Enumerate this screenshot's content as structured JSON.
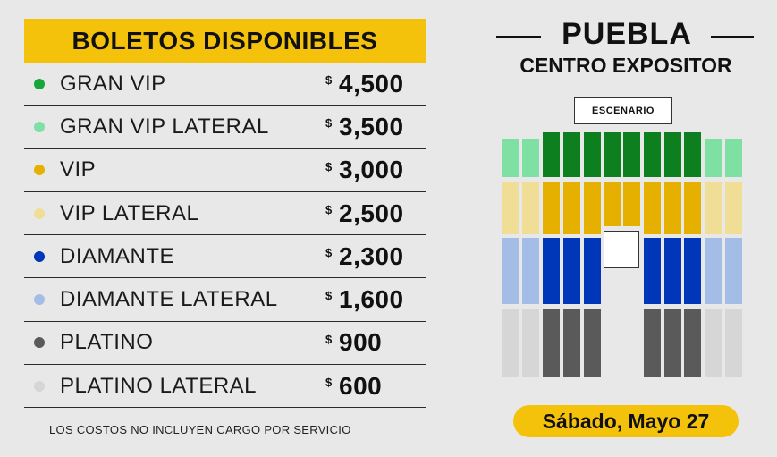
{
  "title": "BOLETOS DISPONIBLES",
  "currency_symbol": "$",
  "tickets": [
    {
      "name": "GRAN VIP",
      "price": "4,500",
      "color": "#14a83b"
    },
    {
      "name": "GRAN VIP LATERAL",
      "price": "3,500",
      "color": "#7fe0a4"
    },
    {
      "name": "VIP",
      "price": "3,000",
      "color": "#e6b000"
    },
    {
      "name": "VIP LATERAL",
      "price": "2,500",
      "color": "#f0dd96"
    },
    {
      "name": "DIAMANTE",
      "price": "2,300",
      "color": "#0036b8"
    },
    {
      "name": "DIAMANTE LATERAL",
      "price": "1,600",
      "color": "#a3bde6"
    },
    {
      "name": "PLATINO",
      "price": "900",
      "color": "#5a5a5a"
    },
    {
      "name": "PLATINO LATERAL",
      "price": "600",
      "color": "#d6d6d6"
    }
  ],
  "footnote": "LOS COSTOS NO INCLUYEN CARGO POR SERVICIO",
  "city": "PUEBLA",
  "venue": "CENTRO EXPOSITOR",
  "stage_label": "ESCENARIO",
  "date": "Sábado, Mayo 27",
  "colors": {
    "accent": "#f5c20b",
    "background": "#e8e8e8",
    "gran_vip": "#0e7f1f",
    "gran_vip_lateral": "#7fe0a4",
    "vip": "#e6b000",
    "vip_lateral": "#f0dd96",
    "diamante": "#0036b8",
    "diamante_lateral": "#a3bde6",
    "platino": "#5a5a5a",
    "platino_lateral": "#d6d6d6"
  }
}
